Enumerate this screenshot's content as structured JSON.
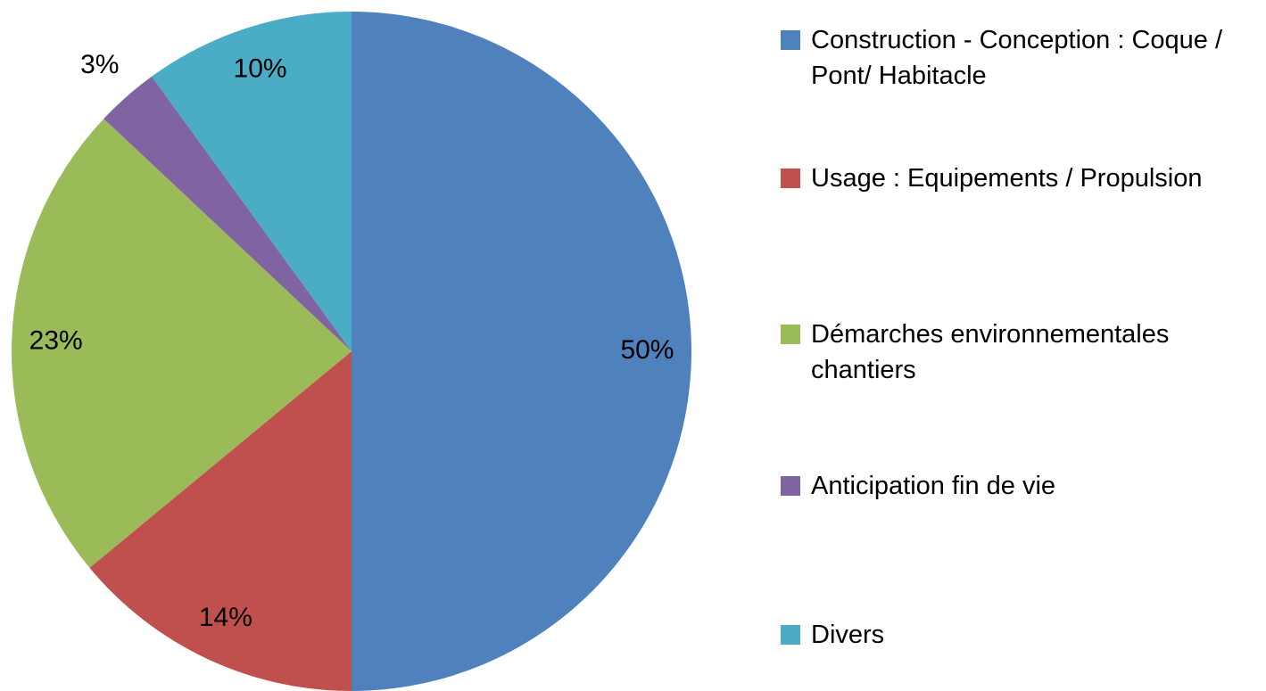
{
  "chart_data": {
    "type": "pie",
    "categories": [
      "Construction - Conception : Coque / Pont/ Habitacle",
      "Usage : Equipements / Propulsion",
      "Démarches environnementales chantiers",
      "Anticipation fin de vie",
      "Divers"
    ],
    "values": [
      50,
      14,
      23,
      3,
      10
    ],
    "value_labels": [
      "50%",
      "14%",
      "23%",
      "3%",
      "10%"
    ],
    "colors": [
      "#4f81bd",
      "#c0504d",
      "#9bbb59",
      "#8064a2",
      "#4bacc6"
    ],
    "legend": "right"
  }
}
